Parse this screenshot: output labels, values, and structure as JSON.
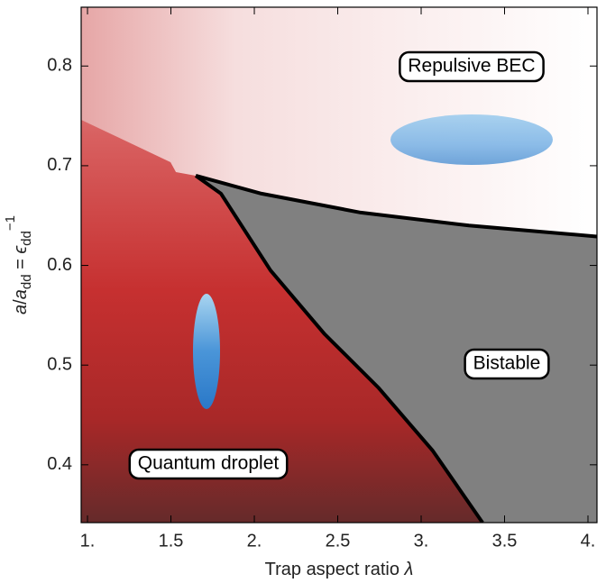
{
  "chart_data": {
    "type": "line",
    "x_label": [
      "Trap aspect ratio ",
      "λ"
    ],
    "y_label": [
      "a",
      "/",
      "a",
      "dd",
      " = ",
      "ϵ",
      "dd",
      "−1"
    ],
    "xlim": [
      0.962,
      4.054
    ],
    "ylim": [
      0.342,
      0.859
    ],
    "xticks": [
      {
        "value": 1,
        "label": "1."
      },
      1.5,
      {
        "value": 2,
        "label": "2."
      },
      2.5,
      {
        "value": 3,
        "label": "3."
      },
      3.5,
      {
        "value": 4,
        "label": "4."
      }
    ],
    "yticks": [
      0.4,
      0.5,
      0.6,
      0.7,
      0.8
    ],
    "series": [
      {
        "color": "#000000",
        "x": [
          1.649,
          2.043,
          2.638,
          3.286,
          4.054
        ],
        "values": [
          0.69,
          0.672,
          0.653,
          0.64,
          0.629
        ]
      },
      {
        "color": "#000000",
        "x": [
          1.649,
          1.8,
          2.097,
          2.422,
          2.746,
          3.07,
          3.368
        ],
        "values": [
          0.69,
          0.672,
          0.595,
          0.531,
          0.477,
          0.414,
          0.342
        ]
      }
    ],
    "regions": [
      {
        "label": "Repulsive BEC"
      },
      {
        "label": "Bistable",
        "color": "#808080"
      },
      {
        "label": "Quantum droplet",
        "color": "#c83434"
      }
    ]
  }
}
